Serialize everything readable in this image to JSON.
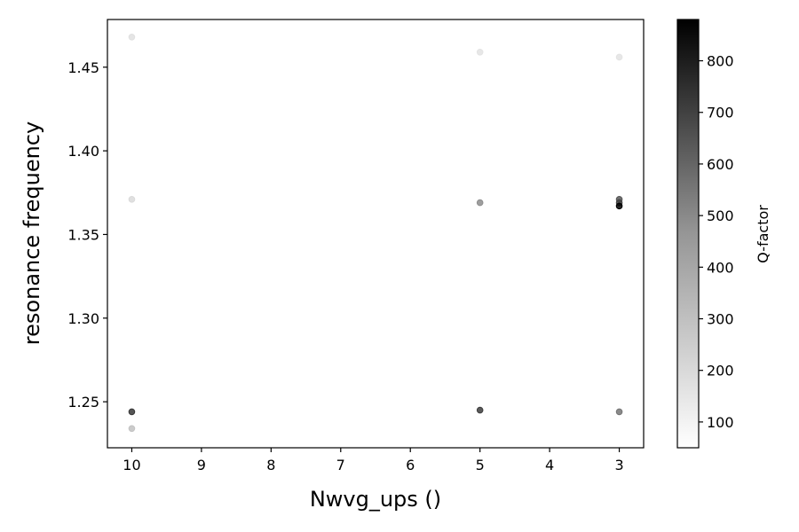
{
  "chart_data": {
    "type": "scatter",
    "title": "",
    "xlabel": "Nwvg_ups ()",
    "ylabel": "resonance frequency",
    "x_inverted": true,
    "xlim": [
      10.35,
      2.65
    ],
    "ylim": [
      1.2225,
      1.4785
    ],
    "xticks": [
      10,
      9,
      8,
      7,
      6,
      5,
      4,
      3
    ],
    "yticks": [
      1.25,
      1.3,
      1.35,
      1.4,
      1.45
    ],
    "ytick_labels": [
      "1.25",
      "1.30",
      "1.35",
      "1.40",
      "1.45"
    ],
    "grid": false,
    "colormap": "Greys",
    "colorbar": {
      "label": "Q-factor",
      "range": [
        50,
        880
      ],
      "ticks": [
        100,
        200,
        300,
        400,
        500,
        600,
        700,
        800
      ]
    },
    "points": [
      {
        "x": 10,
        "y": 1.468,
        "q": 150
      },
      {
        "x": 10,
        "y": 1.371,
        "q": 170
      },
      {
        "x": 10,
        "y": 1.244,
        "q": 700
      },
      {
        "x": 10,
        "y": 1.234,
        "q": 250
      },
      {
        "x": 5,
        "y": 1.459,
        "q": 140
      },
      {
        "x": 5,
        "y": 1.369,
        "q": 420
      },
      {
        "x": 5,
        "y": 1.245,
        "q": 680
      },
      {
        "x": 3,
        "y": 1.456,
        "q": 140
      },
      {
        "x": 3,
        "y": 1.371,
        "q": 600
      },
      {
        "x": 3,
        "y": 1.369,
        "q": 660
      },
      {
        "x": 3,
        "y": 1.367,
        "q": 880
      },
      {
        "x": 3,
        "y": 1.244,
        "q": 500
      }
    ]
  }
}
